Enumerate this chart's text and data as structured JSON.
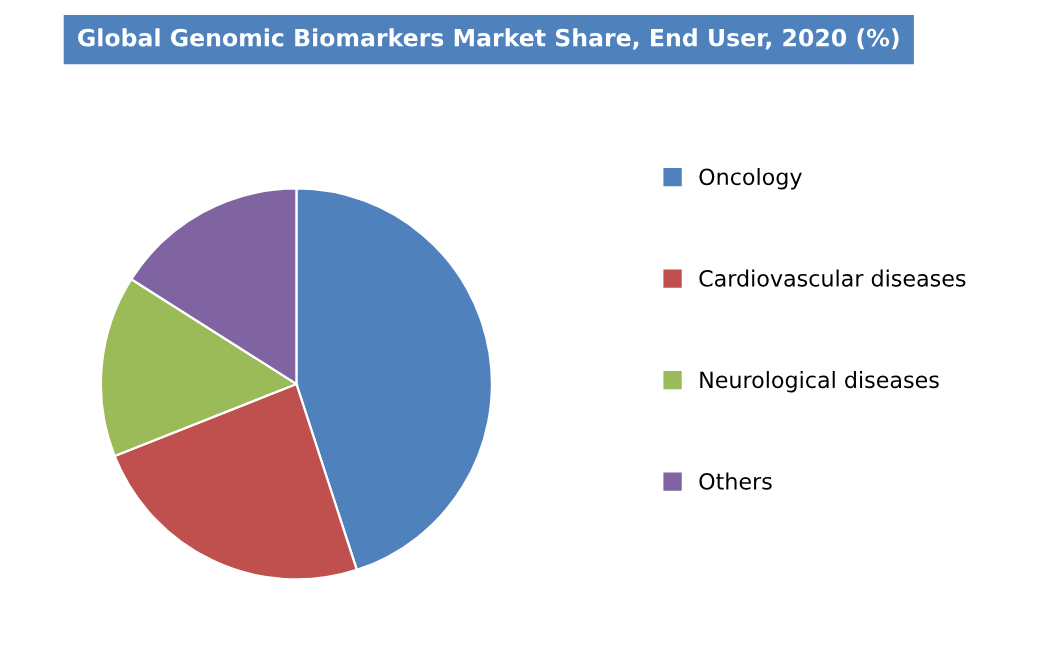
{
  "chart_data": {
    "type": "pie",
    "title": "Global Genomic Biomarkers Market Share, End User, 2020 (%)",
    "categories": [
      "Oncology",
      "Cardiovascular diseases",
      "Neurological diseases",
      "Others"
    ],
    "values": [
      45,
      24,
      15,
      16
    ],
    "colors": [
      "#4f81bd",
      "#c0504d",
      "#9bbb59",
      "#8064a2"
    ],
    "legend": "right"
  }
}
